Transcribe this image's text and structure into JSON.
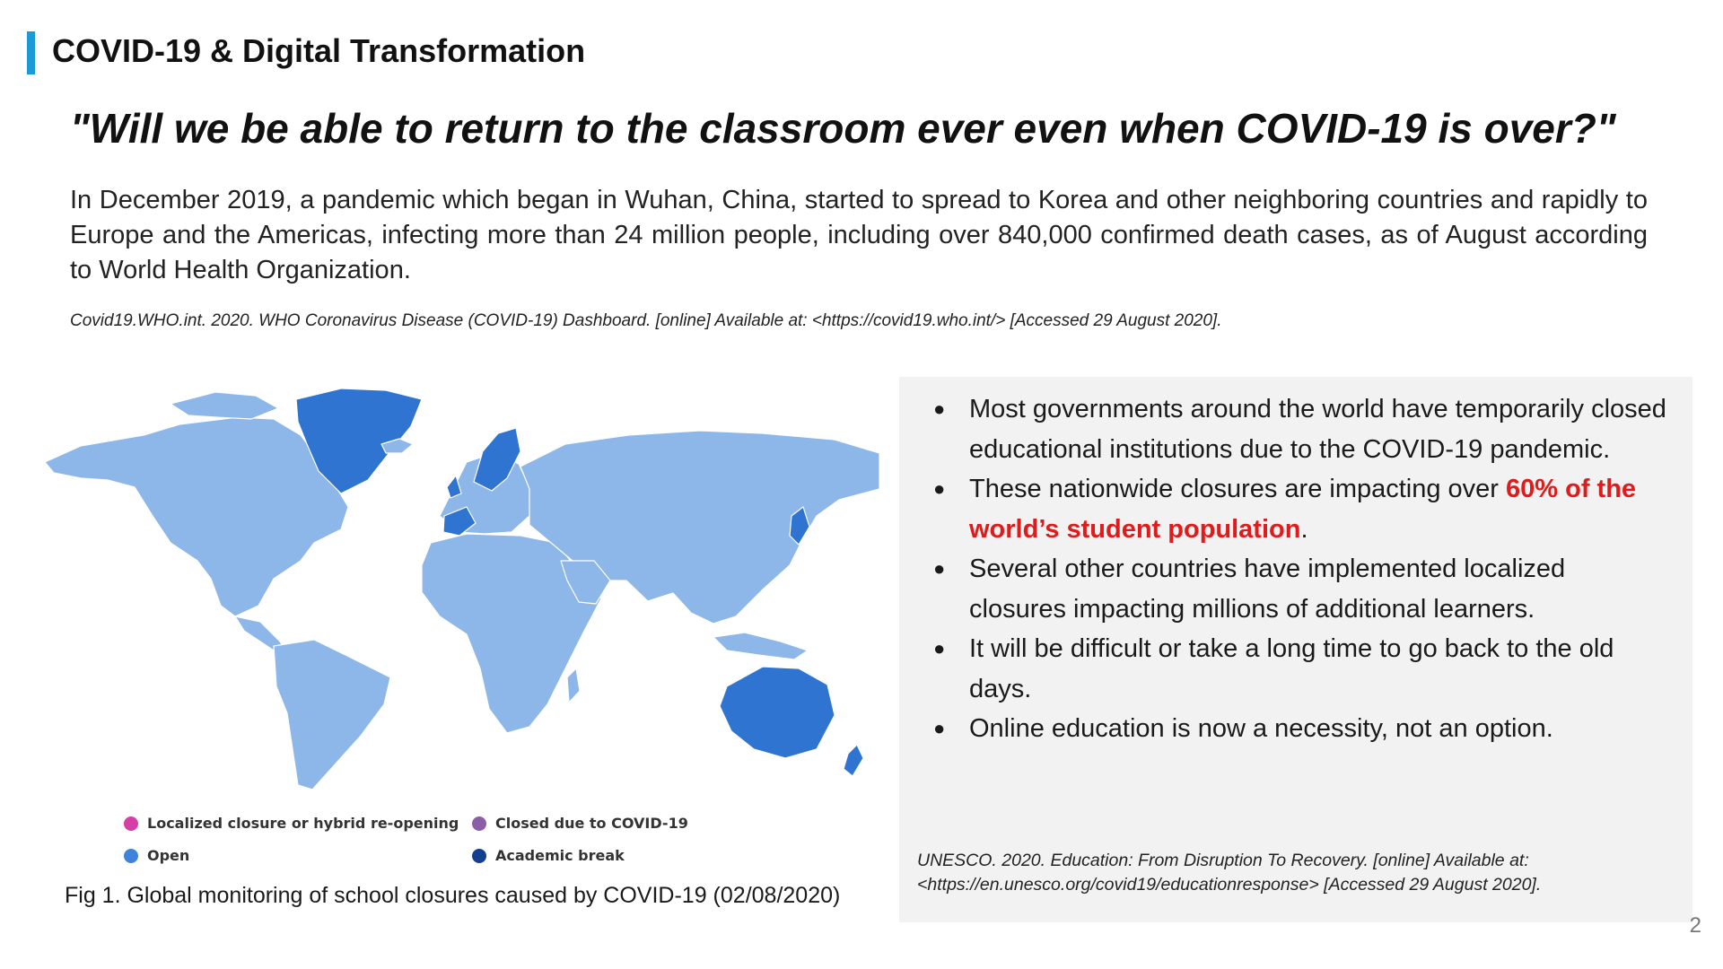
{
  "header": {
    "title": "COVID-19 & Digital Transformation"
  },
  "quote": "\"Will we be able to return to the classroom ever even when COVID-19 is over?\"",
  "intro": "In December 2019, a pandemic which began in Wuhan, China, started to spread to Korea and other neighboring countries and rapidly to Europe and the Americas, infecting more than 24 million people, including over 840,000 confirmed death cases, as of August according to World Health Organization.",
  "citation_who": "Covid19.WHO.int. 2020. WHO Coronavirus Disease (COVID-19) Dashboard. [online] Available at: <https://covid19.who.int/> [Accessed 29 August 2020].",
  "map": {
    "colors": {
      "open": "#8db7e8",
      "open_dark": "#2f74d0",
      "localized": "#d63fa6",
      "closed": "#8a5fa8",
      "academic_break": "#123f8f"
    },
    "legend": [
      {
        "label": "Localized closure or hybrid re-opening",
        "color": "#d63fa6"
      },
      {
        "label": "Closed due to COVID-19",
        "color": "#8a5fa8"
      },
      {
        "label": "Open",
        "color": "#3f84db"
      },
      {
        "label": "Academic break",
        "color": "#123f8f"
      }
    ],
    "caption": "Fig 1. Global monitoring of school closures caused by COVID-19 (02/08/2020)"
  },
  "panel": {
    "bullets": [
      {
        "text": "Most governments around the world have temporarily closed educational institutions due to the COVID-19 pandemic."
      },
      {
        "before": "These nationwide closures are impacting over ",
        "highlight": "60% of the world’s student population",
        "after": "."
      },
      {
        "text": "Several other countries have implemented localized closures impacting millions of additional learners."
      },
      {
        "text": "It will be difficult or take a long time to go back to the old days."
      },
      {
        "text": "Online education is now a necessity, not an option."
      }
    ],
    "citation": "UNESCO. 2020. Education: From Disruption To Recovery. [online] Available at: <https://en.unesco.org/covid19/educationresponse> [Accessed 29 August 2020]."
  },
  "page_number": "2"
}
